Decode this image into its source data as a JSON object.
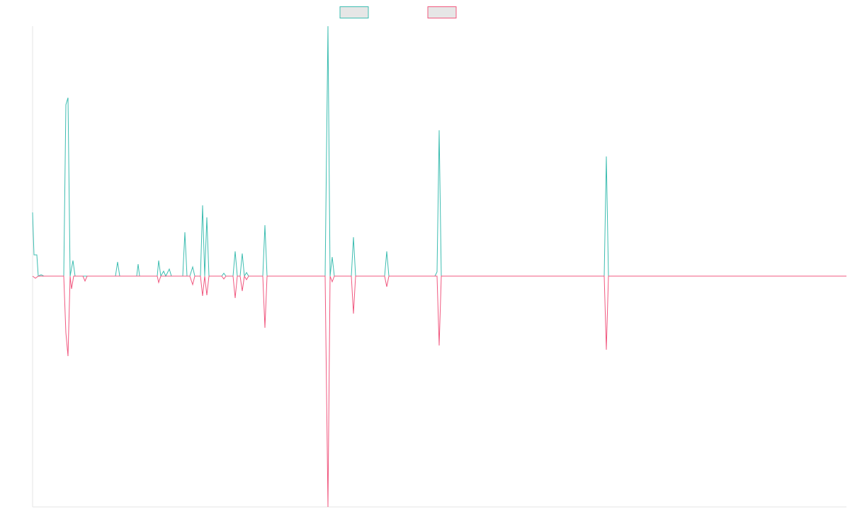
{
  "chart_data": {
    "type": "line",
    "xlim": [
      0,
      1149
    ],
    "ylim": [
      -326,
      353
    ],
    "series": [
      {
        "color": "#3dbdb1",
        "x": [
          0,
          2,
          6,
          8,
          12,
          16,
          44,
          47,
          50,
          53,
          57,
          60,
          117,
          120,
          123,
          147,
          149,
          151,
          176,
          178,
          181,
          185,
          188,
          193,
          196,
          212,
          215,
          218,
          222,
          226,
          229,
          237,
          240,
          243,
          246,
          249,
          267,
          270,
          273,
          283,
          286,
          289,
          293,
          296,
          299,
          302,
          305,
          325,
          328,
          331,
          413,
          417,
          420,
          423,
          426,
          450,
          453,
          456,
          497,
          500,
          503,
          568,
          571,
          574,
          577,
          807,
          810,
          813,
          1149
        ],
        "values": [
          90,
          30,
          30,
          0,
          2,
          0,
          0,
          242,
          252,
          0,
          22,
          0,
          0,
          20,
          0,
          0,
          17,
          0,
          0,
          22,
          0,
          7,
          0,
          10,
          0,
          0,
          62,
          0,
          0,
          13,
          0,
          0,
          100,
          0,
          83,
          0,
          0,
          4,
          0,
          0,
          35,
          0,
          0,
          32,
          0,
          5,
          0,
          0,
          72,
          0,
          0,
          353,
          0,
          27,
          0,
          0,
          55,
          0,
          0,
          35,
          0,
          0,
          6,
          206,
          0,
          0,
          169,
          0,
          0
        ]
      },
      {
        "color": "#f0587f",
        "x": [
          0,
          4,
          8,
          44,
          47,
          50,
          53,
          55,
          58,
          71,
          74,
          77,
          176,
          178,
          181,
          222,
          226,
          229,
          237,
          240,
          243,
          246,
          249,
          267,
          270,
          273,
          283,
          286,
          289,
          293,
          296,
          299,
          302,
          305,
          325,
          328,
          331,
          413,
          417,
          420,
          423,
          426,
          450,
          453,
          456,
          497,
          500,
          503,
          571,
          574,
          577,
          807,
          810,
          813,
          1149
        ],
        "values": [
          0,
          -3,
          0,
          0,
          -80,
          -113,
          0,
          -18,
          0,
          0,
          -7,
          0,
          0,
          -9,
          0,
          0,
          -12,
          0,
          0,
          -28,
          0,
          -27,
          0,
          0,
          -4,
          0,
          0,
          -31,
          0,
          0,
          -21,
          0,
          -5,
          0,
          0,
          -73,
          0,
          0,
          -326,
          0,
          -8,
          0,
          0,
          -53,
          0,
          0,
          -15,
          0,
          0,
          -98,
          0,
          0,
          -104,
          0,
          0
        ]
      }
    ]
  }
}
